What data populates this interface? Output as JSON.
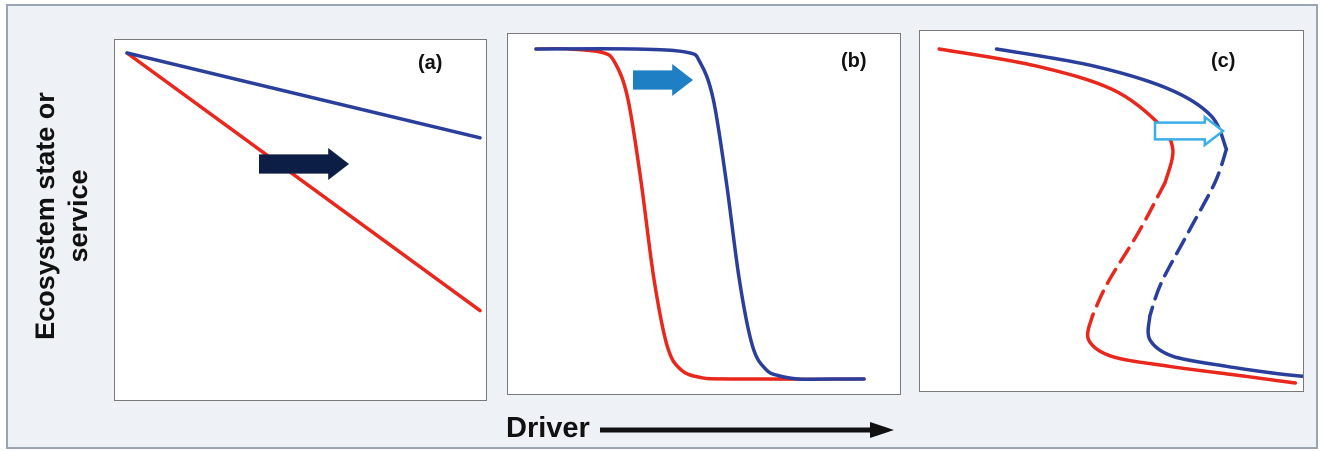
{
  "figure": {
    "ylabel": "Ecosystem state or\nservice",
    "xlabel": "Driver"
  },
  "colors": {
    "red": "#e8271d",
    "blue": "#2a3f9c",
    "arrow_a": "#0c1e45",
    "arrow_b": "#1f7fc4",
    "arrow_c_outline": "#3aaee6"
  },
  "chart_data": [
    {
      "type": "line",
      "panel": "(a)",
      "xlim": [
        0,
        1
      ],
      "ylim": [
        0,
        1
      ],
      "series": [
        {
          "color": "red",
          "x": [
            0,
            1
          ],
          "y": [
            1.0,
            0.15
          ]
        },
        {
          "color": "blue",
          "x": [
            0,
            1
          ],
          "y": [
            1.0,
            0.72
          ]
        }
      ],
      "annotation": "shift-right arrow"
    },
    {
      "type": "line",
      "panel": "(b)",
      "xlim": [
        0,
        1
      ],
      "ylim": [
        0,
        1
      ],
      "series": [
        {
          "color": "red",
          "x": [
            0.0,
            0.1,
            0.2,
            0.24,
            0.28,
            0.32,
            0.36,
            0.4,
            0.44,
            0.5,
            0.6,
            1.0
          ],
          "y": [
            1.0,
            1.0,
            0.99,
            0.96,
            0.85,
            0.6,
            0.3,
            0.1,
            0.03,
            0.005,
            0.0,
            0.0
          ]
        },
        {
          "color": "blue",
          "x": [
            0.0,
            0.3,
            0.46,
            0.5,
            0.54,
            0.58,
            0.62,
            0.66,
            0.7,
            0.74,
            0.8,
            0.9,
            1.0
          ],
          "y": [
            1.0,
            1.0,
            0.99,
            0.96,
            0.85,
            0.6,
            0.3,
            0.1,
            0.03,
            0.01,
            0.0,
            0.0,
            0.0
          ]
        }
      ],
      "annotation": "shift-right arrow"
    },
    {
      "type": "line",
      "panel": "(c)",
      "xlim": [
        0,
        1
      ],
      "ylim": [
        0,
        1
      ],
      "series": [
        {
          "color": "red",
          "style": "solid",
          "x": [
            0.05,
            0.3,
            0.5,
            0.62,
            0.66,
            0.64
          ],
          "y": [
            1.0,
            0.95,
            0.88,
            0.78,
            0.7,
            0.6
          ]
        },
        {
          "color": "red",
          "style": "dashed",
          "x": [
            0.64,
            0.57,
            0.49,
            0.45
          ],
          "y": [
            0.6,
            0.45,
            0.3,
            0.2
          ]
        },
        {
          "color": "red",
          "style": "solid",
          "x": [
            0.45,
            0.44,
            0.5,
            0.65,
            0.85,
            0.98
          ],
          "y": [
            0.2,
            0.13,
            0.08,
            0.05,
            0.02,
            0.0
          ]
        },
        {
          "color": "blue",
          "style": "solid",
          "x": [
            0.2,
            0.45,
            0.65,
            0.76,
            0.8
          ],
          "y": [
            1.0,
            0.95,
            0.88,
            0.8,
            0.7
          ]
        },
        {
          "color": "blue",
          "style": "dashed",
          "x": [
            0.8,
            0.77,
            0.7,
            0.63,
            0.6
          ],
          "y": [
            0.7,
            0.6,
            0.45,
            0.3,
            0.2
          ]
        },
        {
          "color": "blue",
          "style": "solid",
          "x": [
            0.6,
            0.6,
            0.66,
            0.8,
            0.92,
            1.0
          ],
          "y": [
            0.2,
            0.13,
            0.08,
            0.05,
            0.03,
            0.02
          ]
        }
      ],
      "annotation": "outlined shift-right arrow"
    }
  ]
}
